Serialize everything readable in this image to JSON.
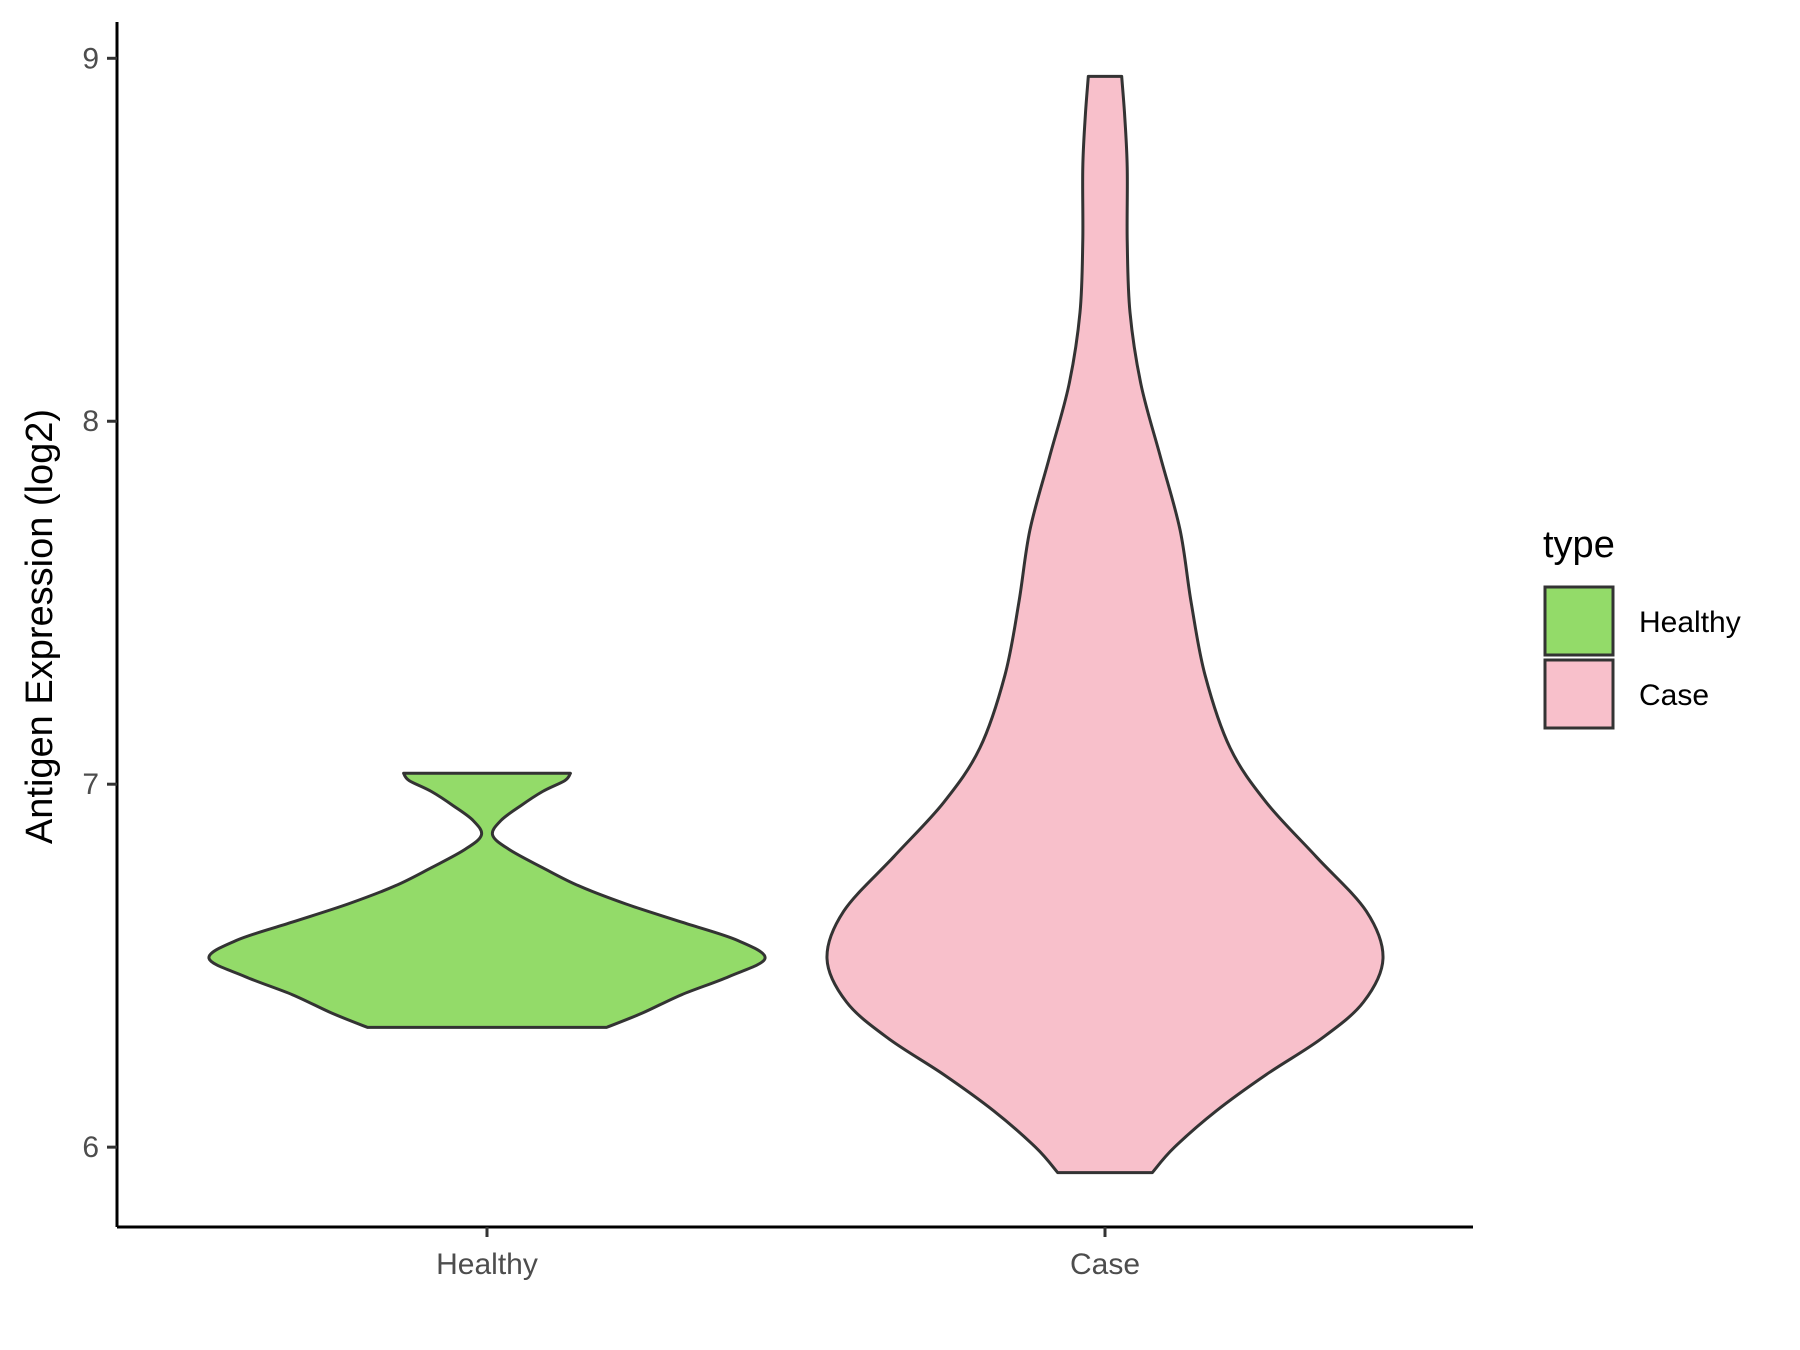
{
  "chart_data": {
    "type": "violin",
    "title": "",
    "xlabel": "",
    "ylabel": "Antigen Expression (log2)",
    "ylim": [
      5.78,
      9.1
    ],
    "yticks": [
      6,
      7,
      8,
      9
    ],
    "yticks_text": [
      "6",
      "7",
      "8",
      "9"
    ],
    "categories": [
      "Healthy",
      "Case"
    ],
    "grid": false,
    "legend": {
      "title": "type",
      "position": "right",
      "entries": [
        {
          "label": "Healthy",
          "color": "#93DB69"
        },
        {
          "label": "Case",
          "color": "#F8C0CB"
        }
      ]
    },
    "series": [
      {
        "category": "Healthy",
        "color": "#93DB69",
        "min": 6.33,
        "max": 7.03,
        "density": [
          [
            6.33,
            0.43
          ],
          [
            6.37,
            0.56
          ],
          [
            6.42,
            0.7
          ],
          [
            6.47,
            0.87
          ],
          [
            6.52,
            1.0
          ],
          [
            6.57,
            0.9
          ],
          [
            6.62,
            0.7
          ],
          [
            6.67,
            0.5
          ],
          [
            6.72,
            0.33
          ],
          [
            6.77,
            0.2
          ],
          [
            6.82,
            0.08
          ],
          [
            6.86,
            0.02
          ],
          [
            6.9,
            0.05
          ],
          [
            6.94,
            0.12
          ],
          [
            6.98,
            0.2
          ],
          [
            7.01,
            0.28
          ],
          [
            7.03,
            0.3
          ]
        ]
      },
      {
        "category": "Case",
        "color": "#F8C0CB",
        "min": 5.93,
        "max": 8.95,
        "density": [
          [
            5.93,
            0.17
          ],
          [
            6.0,
            0.25
          ],
          [
            6.1,
            0.4
          ],
          [
            6.2,
            0.58
          ],
          [
            6.3,
            0.78
          ],
          [
            6.4,
            0.93
          ],
          [
            6.52,
            1.0
          ],
          [
            6.65,
            0.94
          ],
          [
            6.8,
            0.76
          ],
          [
            6.95,
            0.58
          ],
          [
            7.1,
            0.45
          ],
          [
            7.3,
            0.36
          ],
          [
            7.5,
            0.31
          ],
          [
            7.7,
            0.27
          ],
          [
            7.9,
            0.2
          ],
          [
            8.1,
            0.13
          ],
          [
            8.3,
            0.09
          ],
          [
            8.5,
            0.08
          ],
          [
            8.7,
            0.08
          ],
          [
            8.85,
            0.07
          ],
          [
            8.95,
            0.06
          ]
        ]
      }
    ]
  }
}
